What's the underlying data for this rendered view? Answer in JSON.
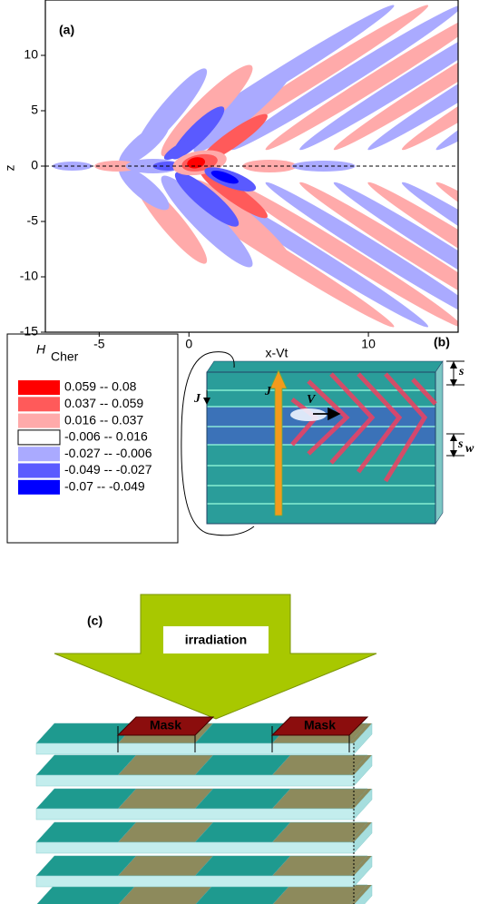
{
  "chart_data": {
    "type": "contour",
    "label": "(a)",
    "xlabel": "x-Vt",
    "ylabel": "z",
    "xlim": [
      -8,
      15
    ],
    "ylim": [
      -15,
      15
    ],
    "xticks": [
      -5,
      0,
      10
    ],
    "yticks": [
      -15,
      -10,
      -5,
      0,
      5,
      10
    ],
    "legend_title": "H",
    "legend_title_sub": "Cher",
    "levels": [
      {
        "label": "0.059 -- 0.08",
        "color": "#ff0000"
      },
      {
        "label": "0.037 -- 0.059",
        "color": "#ff5a5a"
      },
      {
        "label": "0.016  --  0.037",
        "color": "#ffaaaa"
      },
      {
        "label": "-0.006  --  0.016",
        "color": "#ffffff"
      },
      {
        "label": "-0.027  --  -0.006",
        "color": "#aaaaff"
      },
      {
        "label": "-0.049  --  -0.027",
        "color": "#5a5aff"
      },
      {
        "label": "-0.07   --  -0.049",
        "color": "#0000ff"
      }
    ]
  },
  "panel_b": {
    "label": "(b)",
    "current_label": "J",
    "side_current_label": "J",
    "velocity_label": "V",
    "spacing_label": "s",
    "spacing_w_label": "s",
    "spacing_w_sub": "w"
  },
  "panel_c": {
    "label": "(c)",
    "arrow_label": "irradiation",
    "masks": [
      "Mask",
      "Mask"
    ]
  }
}
